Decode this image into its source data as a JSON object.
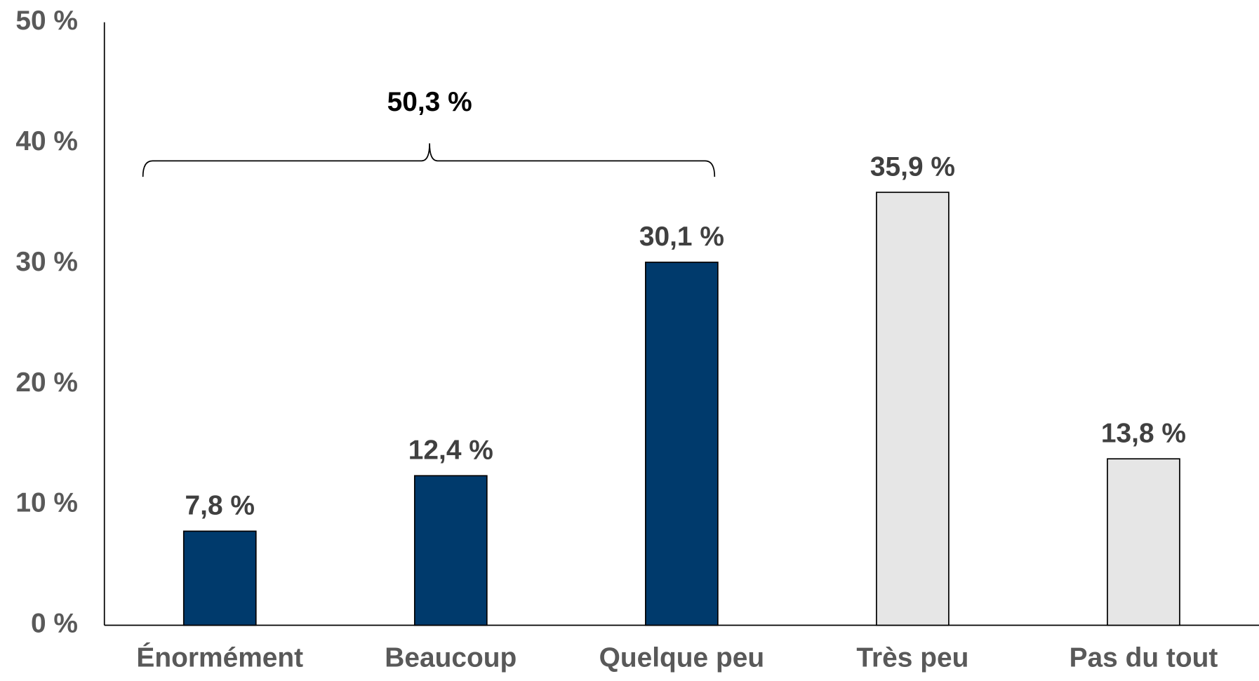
{
  "chart_data": {
    "type": "bar",
    "categories": [
      "Énormément",
      "Beaucoup",
      "Quelque peu",
      "Très peu",
      "Pas du tout"
    ],
    "values": [
      7.8,
      12.4,
      30.1,
      35.9,
      13.8
    ],
    "value_labels": [
      "7,8 %",
      "12,4 %",
      "30,1 %",
      "35,9 %",
      "13,8 %"
    ],
    "colors": [
      "#003a6c",
      "#003a6c",
      "#003a6c",
      "#e6e6e6",
      "#e6e6e6"
    ],
    "ylim": [
      0,
      50
    ],
    "yticks": [
      {
        "value": 0,
        "label": "0 %"
      },
      {
        "value": 10,
        "label": "10 %"
      },
      {
        "value": 20,
        "label": "20 %"
      },
      {
        "value": 30,
        "label": "30 %"
      },
      {
        "value": 40,
        "label": "40 %"
      },
      {
        "value": 50,
        "label": "50 %"
      }
    ],
    "grid": false,
    "annotation": "50,3 %"
  }
}
